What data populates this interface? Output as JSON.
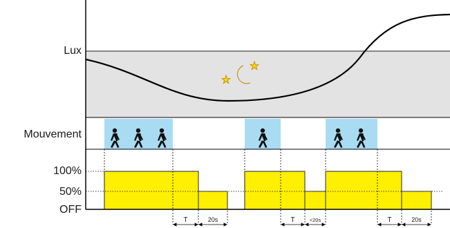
{
  "labels": {
    "lux": "Lux",
    "movement": "Mouvement",
    "level_100": "100%",
    "level_50": "50%",
    "level_off": "OFF"
  },
  "timing": {
    "t1": "T",
    "d1": "20s",
    "t2": "T",
    "d2": "<20s",
    "t3": "T",
    "d3": "20s"
  },
  "colors": {
    "lux_band": "#e3e3e3",
    "motion_block": "#a9dcf3",
    "light_level": "#ffef00"
  },
  "icons": {
    "night": "crescent-moon-with-stars-icon",
    "motion": "walking-person-icon"
  }
}
